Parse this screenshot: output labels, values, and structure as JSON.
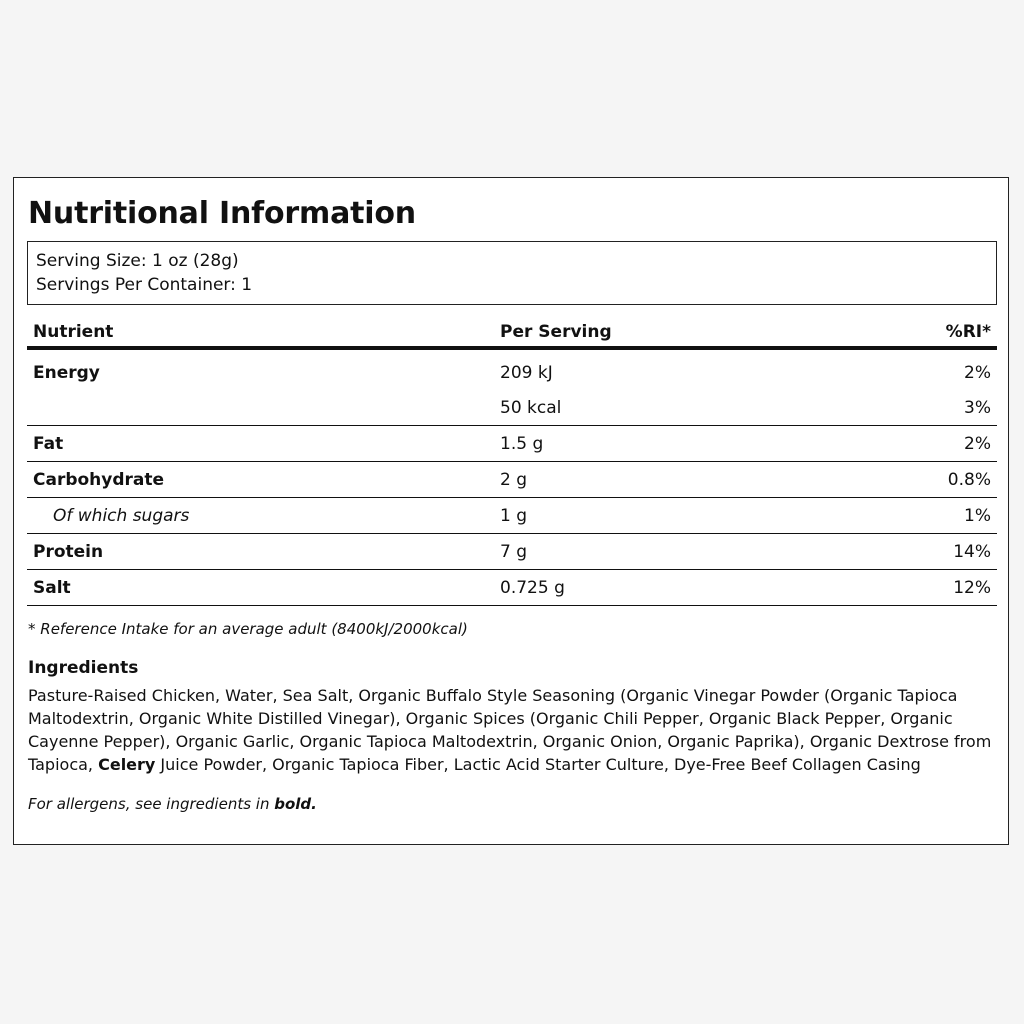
{
  "title": "Nutritional Information",
  "serving": {
    "size": "Serving Size: 1 oz (28g)",
    "per_container": "Servings Per Container: 1"
  },
  "table": {
    "headers": [
      "Nutrient",
      "Per Serving",
      "%RI*"
    ],
    "rows": [
      {
        "nutrient": "Energy",
        "per_serving": "209 kJ",
        "ri": "2%"
      },
      {
        "nutrient": "",
        "per_serving": "50 kcal",
        "ri": "3%"
      },
      {
        "nutrient": "Fat",
        "per_serving": "1.5 g",
        "ri": "2%"
      },
      {
        "nutrient": "Carbohydrate",
        "per_serving": "2 g",
        "ri": "0.8%"
      },
      {
        "nutrient": "Of which sugars",
        "per_serving": "1 g",
        "ri": "1%"
      },
      {
        "nutrient": "Protein",
        "per_serving": "7 g",
        "ri": "14%"
      },
      {
        "nutrient": "Salt",
        "per_serving": "0.725 g",
        "ri": "12%"
      }
    ]
  },
  "footnote": "* Reference Intake for an average adult (8400kJ/2000kcal)",
  "ingredients": {
    "heading": "Ingredients",
    "part1": "Pasture-Raised Chicken, Water, Sea Salt, Organic Buffalo Style Seasoning (Organic Vinegar Powder (Organic Tapioca Maltodextrin, Organic White Distilled Vinegar), Organic Spices (Organic Chili Pepper, Organic Black Pepper, Organic Cayenne Pepper), Organic Garlic, Organic Tapioca Maltodextrin, Organic Onion, Organic Paprika), Organic Dextrose from Tapioca, ",
    "allergen": "Celery",
    "part2": " Juice Powder, Organic Tapioca Fiber, Lactic Acid Starter Culture, Dye-Free Beef Collagen Casing"
  },
  "allergen_note": {
    "prefix": "For allergens, see ingredients in ",
    "bold_word": "bold."
  }
}
